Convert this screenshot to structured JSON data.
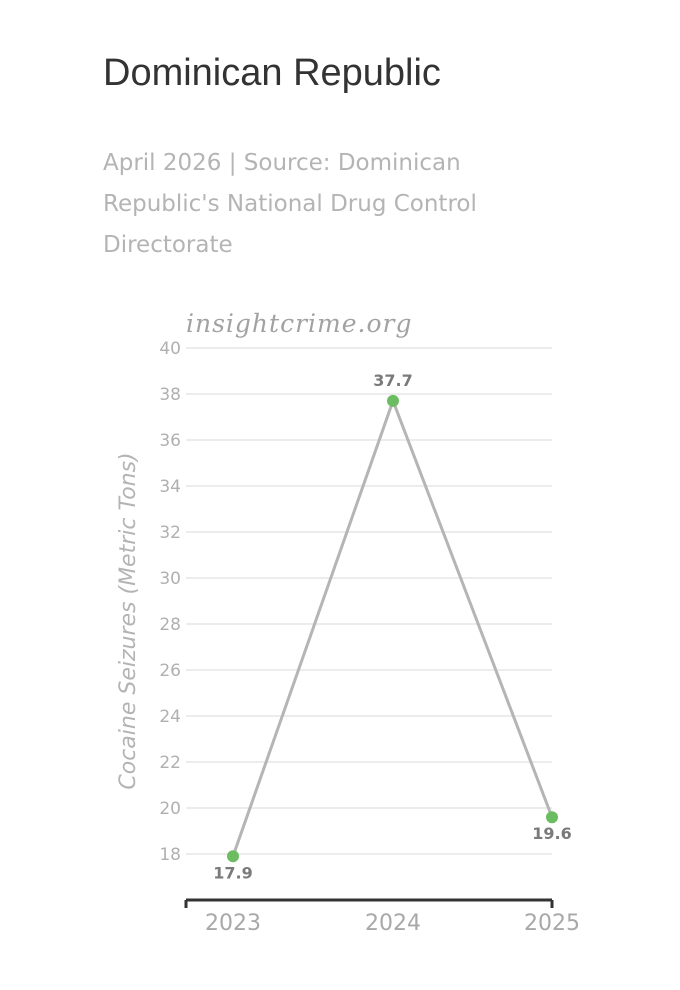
{
  "header": {
    "title": "Dominican Republic",
    "subtitle": "April 2026 | Source: Dominican Republic's National Drug Control Directorate"
  },
  "watermark": "insightcrime.org",
  "colors": {
    "line": "#b5b5b5",
    "point": "#6cbd62",
    "grid": "#e6e6e6",
    "axis": "#333333"
  },
  "chart_data": {
    "type": "line",
    "title": "Dominican Republic",
    "xlabel": "",
    "ylabel": "Cocaine Seizures (Metric Tons)",
    "categories": [
      "2023",
      "2024",
      "2025"
    ],
    "series": [
      {
        "values": [
          17.9,
          37.7,
          19.6
        ]
      }
    ],
    "data_labels": [
      "17.9",
      "37.7",
      "19.6"
    ],
    "ylim": [
      17,
      40
    ],
    "yticks": [
      18,
      20,
      22,
      24,
      26,
      28,
      30,
      32,
      34,
      36,
      38,
      40
    ],
    "grid": true,
    "legend": "none"
  }
}
